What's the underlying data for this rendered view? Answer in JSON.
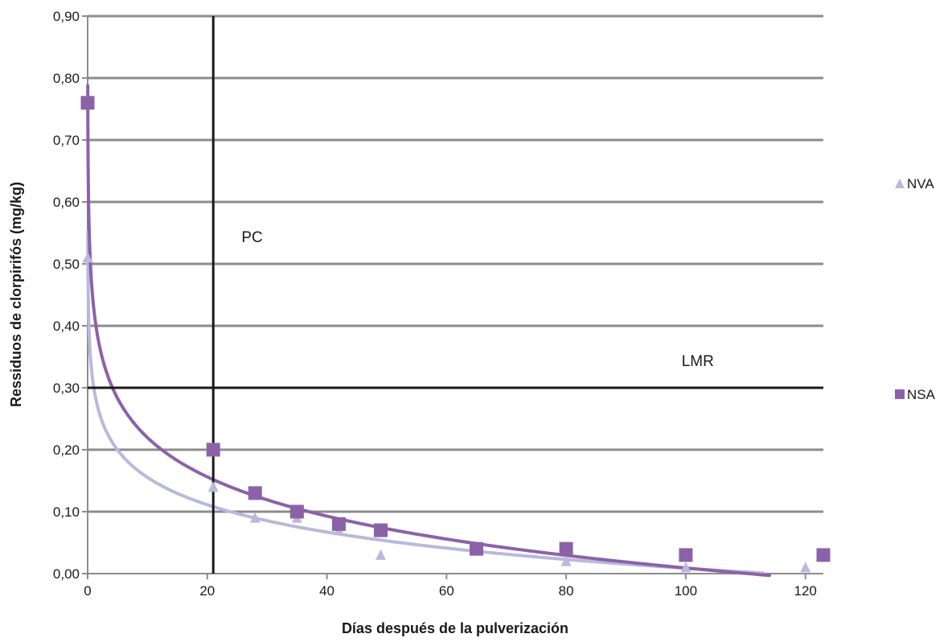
{
  "chart_data": {
    "type": "scatter",
    "title": "",
    "xlabel": "Días después de la pulverización",
    "ylabel": "Ressiduos de clorpirifós (mg/kg)",
    "xlim": [
      0,
      123
    ],
    "ylim": [
      0,
      0.9
    ],
    "x_ticks": [
      0,
      20,
      40,
      60,
      80,
      100,
      120
    ],
    "x_tick_labels": [
      "0",
      "20",
      "40",
      "60",
      "80",
      "100",
      "120"
    ],
    "y_ticks": [
      0,
      0.1,
      0.2,
      0.3,
      0.4,
      0.5,
      0.6,
      0.7,
      0.8,
      0.9
    ],
    "y_tick_labels": [
      "0,00",
      "0,10",
      "0,20",
      "0,30",
      "0,40",
      "0,50",
      "0,60",
      "0,70",
      "0,80",
      "0,90"
    ],
    "grid": true,
    "legend_position": "right",
    "series": [
      {
        "name": "NVA",
        "marker": "triangle",
        "color": "#b9b9dc",
        "x": [
          0,
          21,
          28,
          35,
          42,
          49,
          65,
          80,
          100,
          120
        ],
        "y": [
          0.51,
          0.14,
          0.09,
          0.09,
          0.07,
          0.03,
          0.04,
          0.02,
          0.01,
          0.01
        ],
        "trendline": {
          "type": "logarithmic",
          "a": 0.302,
          "b": -0.0637,
          "x_range": [
            0.02,
            113
          ]
        }
      },
      {
        "name": "NSA",
        "marker": "square",
        "color": "#8b62a8",
        "x": [
          0,
          21,
          28,
          35,
          42,
          49,
          65,
          80,
          100,
          123
        ],
        "y": [
          0.76,
          0.2,
          0.13,
          0.1,
          0.08,
          0.07,
          0.04,
          0.04,
          0.03,
          0.03
        ],
        "trendline": {
          "type": "logarithmic",
          "a": 0.43,
          "b": -0.0914,
          "x_range": [
            0.02,
            114
          ]
        }
      }
    ],
    "reference_lines": [
      {
        "orientation": "vertical",
        "value": 21,
        "label": "PC",
        "label_x": 27.5,
        "label_y": 0.535
      },
      {
        "orientation": "horizontal",
        "value": 0.3,
        "label": "LMR",
        "label_x": 102,
        "label_y": 0.335
      }
    ]
  }
}
